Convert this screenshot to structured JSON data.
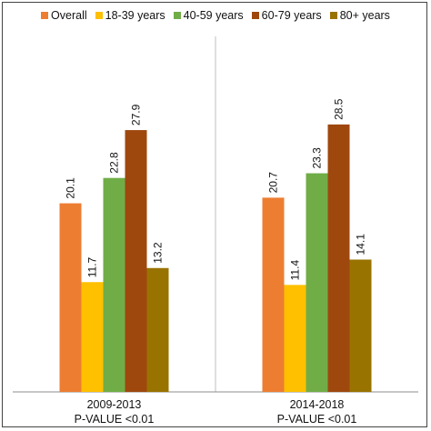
{
  "chart_data": {
    "type": "bar",
    "categories": [
      [
        "2009-2013",
        "P-VALUE <0.01"
      ],
      [
        "2014-2018",
        "P-VALUE <0.01"
      ]
    ],
    "series": [
      {
        "name": "Overall",
        "color": "#ED7D31",
        "values": [
          20.1,
          20.7
        ]
      },
      {
        "name": "18-39 years",
        "color": "#FFC000",
        "values": [
          11.7,
          11.4
        ]
      },
      {
        "name": "40-59 years",
        "color": "#70AD47",
        "values": [
          22.8,
          23.3
        ]
      },
      {
        "name": "60-79 years",
        "color": "#9E480E",
        "values": [
          27.9,
          28.5
        ]
      },
      {
        "name": "80+ years",
        "color": "#997300",
        "values": [
          13.2,
          14.1
        ]
      }
    ],
    "ylim": [
      0,
      30
    ],
    "grid": false,
    "legend": "top-center",
    "data_labels": "rotated-vertical"
  }
}
